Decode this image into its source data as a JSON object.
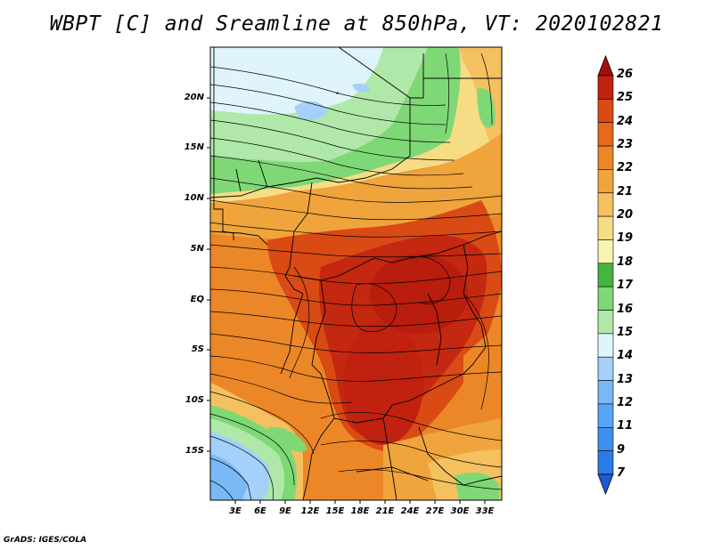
{
  "title": "WBPT [C] and Sreamline at 850hPa, VT: 2020102821",
  "credit": "GrADS: IGES/COLA",
  "latitude_labels": [
    "20N",
    "15N",
    "10N",
    "5N",
    "EQ",
    "5S",
    "10S",
    "15S"
  ],
  "longitude_labels": [
    "3E",
    "6E",
    "9E",
    "12E",
    "15E",
    "18E",
    "21E",
    "24E",
    "27E",
    "30E",
    "33E"
  ],
  "colorbar": {
    "labels": [
      "7",
      "9",
      "11",
      "12",
      "13",
      "14",
      "15",
      "16",
      "17",
      "18",
      "19",
      "20",
      "21",
      "22",
      "23",
      "24",
      "25",
      "26"
    ],
    "colors": [
      "#1e5ad8",
      "#2c7be6",
      "#3e8ff0",
      "#59a5f5",
      "#7ab9f7",
      "#a4d0f9",
      "#dff5fb",
      "#b0e8a9",
      "#7fd876",
      "#45b53f",
      "#fbf3b0",
      "#f7dc86",
      "#f4c060",
      "#f0a43c",
      "#ec8727",
      "#e46a1c",
      "#d94a15",
      "#c0220f",
      "#a50d0c"
    ]
  },
  "chart_data": {
    "type": "heatmap",
    "title": "WBPT [C] and Sreamline at 850hPa, VT: 2020102821",
    "variable": "Wet-bulb potential temperature (C) with 850hPa streamlines",
    "x_axis": {
      "label_ticks": [
        "3E",
        "6E",
        "9E",
        "12E",
        "15E",
        "18E",
        "21E",
        "24E",
        "27E",
        "30E",
        "33E"
      ],
      "range": [
        0,
        35
      ]
    },
    "y_axis": {
      "label_ticks": [
        "20N",
        "15N",
        "10N",
        "5N",
        "EQ",
        "5S",
        "10S",
        "15S"
      ],
      "range": [
        -20,
        24
      ]
    },
    "color_scale_range": [
      7,
      26
    ],
    "valid_time": "2020102821",
    "level": "850hPa"
  }
}
